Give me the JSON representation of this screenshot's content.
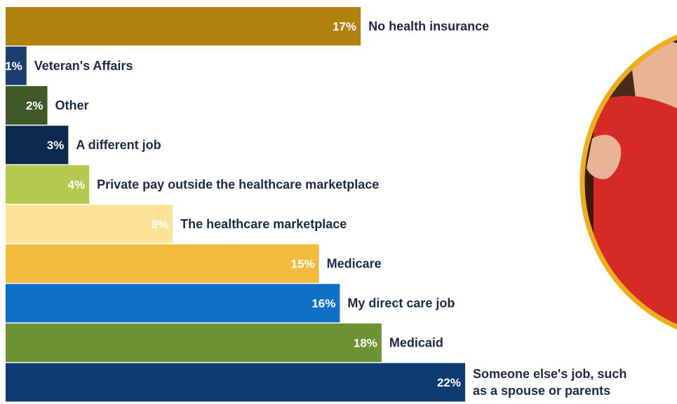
{
  "chart_data": {
    "type": "bar",
    "orientation": "horizontal",
    "title": "",
    "xlabel": "",
    "ylabel": "",
    "xlim": [
      0,
      22
    ],
    "grid": false,
    "value_suffix": "%",
    "bars": [
      {
        "category": "No health insurance",
        "value": 17,
        "label": "17%",
        "color": "#b0820e",
        "label_color": "#ffffff"
      },
      {
        "category": "Veteran's Affairs",
        "value": 1,
        "label": "1%",
        "color": "#1a3e6e",
        "label_color": "#ffffff"
      },
      {
        "category": "Other",
        "value": 2,
        "label": "2%",
        "color": "#3f5a26",
        "label_color": "#ffffff"
      },
      {
        "category": "A different job",
        "value": 3,
        "label": "3%",
        "color": "#0b2a4d",
        "label_color": "#ffffff"
      },
      {
        "category": "Private pay outside the healthcare marketplace",
        "value": 4,
        "label": "4%",
        "color": "#b5c94e",
        "label_color": "#ffffff"
      },
      {
        "category": "The healthcare marketplace",
        "value": 8,
        "label": "8%",
        "color": "#fde397",
        "label_color": "#ffffff"
      },
      {
        "category": "Medicare",
        "value": 15,
        "label": "15%",
        "color": "#f3bb3c",
        "label_color": "#ffffff"
      },
      {
        "category": "My direct care job",
        "value": 16,
        "label": "16%",
        "color": "#0e70c6",
        "label_color": "#ffffff"
      },
      {
        "category": "Medicaid",
        "value": 18,
        "label": "18%",
        "color": "#6d9231",
        "label_color": "#ffffff"
      },
      {
        "category": "Someone else's job, such as a spouse or parents",
        "category_lines": [
          "Someone else's job, such",
          "as a spouse or parents"
        ],
        "value": 22,
        "label": "22%",
        "color": "#0d3c73",
        "label_color": "#ffffff"
      }
    ]
  },
  "colors": {
    "photo_ring": "#eeae1b",
    "photo_shirt": "#d62a27",
    "photo_skin": "#e9b496",
    "photo_hair": "#4a2a19",
    "photo_background": "#3c1a10"
  },
  "icons": {
    "photo": "woman-in-red-shirt-photo"
  }
}
